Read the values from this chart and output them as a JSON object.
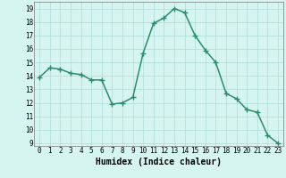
{
  "x": [
    0,
    1,
    2,
    3,
    4,
    5,
    6,
    7,
    8,
    9,
    10,
    11,
    12,
    13,
    14,
    15,
    16,
    17,
    18,
    19,
    20,
    21,
    22,
    23
  ],
  "y": [
    13.9,
    14.6,
    14.5,
    14.2,
    14.1,
    13.7,
    13.7,
    11.9,
    12.0,
    12.4,
    15.7,
    17.9,
    18.3,
    19.0,
    18.7,
    17.0,
    15.9,
    15.0,
    12.7,
    12.3,
    11.5,
    11.3,
    9.6,
    9.0
  ],
  "line_color": "#2e8b6e",
  "marker": "+",
  "marker_size": 4,
  "xlabel": "Humidex (Indice chaleur)",
  "xlim": [
    -0.5,
    23.5
  ],
  "ylim": [
    8.8,
    19.5
  ],
  "yticks": [
    9,
    10,
    11,
    12,
    13,
    14,
    15,
    16,
    17,
    18,
    19
  ],
  "xticks": [
    0,
    1,
    2,
    3,
    4,
    5,
    6,
    7,
    8,
    9,
    10,
    11,
    12,
    13,
    14,
    15,
    16,
    17,
    18,
    19,
    20,
    21,
    22,
    23
  ],
  "bg_color": "#d6f5f0",
  "grid_color": "#aedcd8",
  "tick_fontsize": 5.5,
  "label_fontsize": 7,
  "linewidth": 1.1
}
